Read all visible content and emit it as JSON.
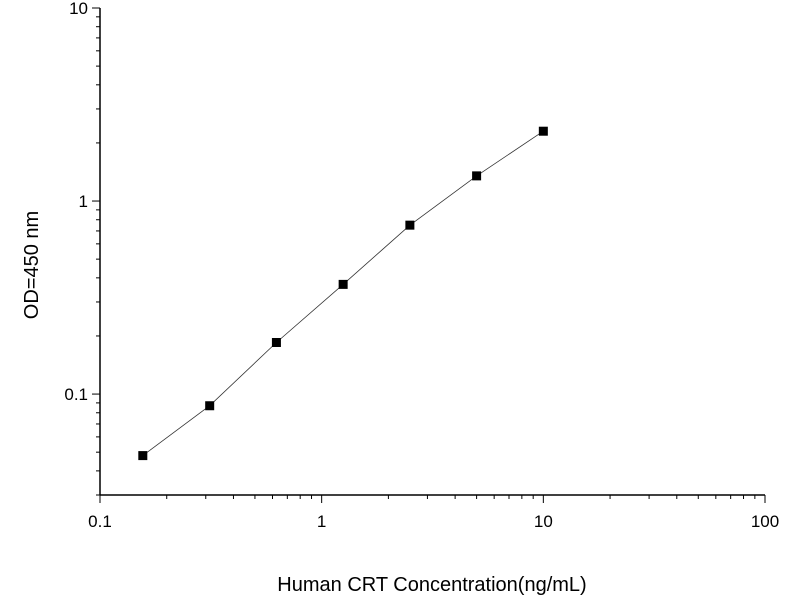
{
  "chart_data": {
    "type": "scatter",
    "title": "",
    "xlabel": "Human CRT Concentration(ng/mL)",
    "ylabel": "OD=450 nm",
    "xscale": "log",
    "yscale": "log",
    "xlim": [
      0.1,
      100
    ],
    "ylim": [
      0.03,
      10
    ],
    "xticks": [
      0.1,
      1,
      10,
      100
    ],
    "xtick_labels": [
      "0.1",
      "1",
      "10",
      "100"
    ],
    "yticks": [
      0.1,
      1,
      10
    ],
    "ytick_labels": [
      "0.1",
      "1",
      "10"
    ],
    "grid": false,
    "legend": "none",
    "fit_line": true,
    "marker": "square",
    "colors": {
      "marker": "#000000",
      "line": "#333333",
      "axis": "#000000"
    },
    "series": [
      {
        "x": [
          0.156,
          0.3125,
          0.625,
          1.25,
          2.5,
          5,
          10
        ],
        "y": [
          0.048,
          0.087,
          0.185,
          0.37,
          0.75,
          1.35,
          2.3
        ]
      }
    ]
  }
}
